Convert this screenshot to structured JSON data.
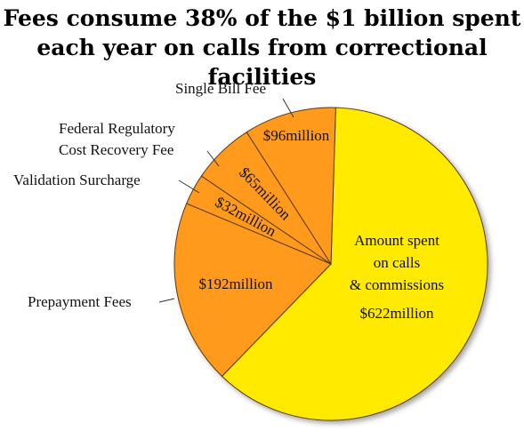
{
  "title_line1": "Fees consume 38% of the $1 billion spent",
  "title_line2": "each year on calls from correctional facilities",
  "chart_data": {
    "type": "pie",
    "title": "Fees consume 38% of the $1 billion spent each year on calls from correctional facilities",
    "unit": "million",
    "slices": [
      {
        "name": "Amount spent on calls & commissions",
        "value": 622,
        "label": "$622million",
        "color": "#FFEA00"
      },
      {
        "name": "Prepayment Fees",
        "value": 192,
        "label": "$192million",
        "color": "#FF9A1F"
      },
      {
        "name": "Validation Surcharge",
        "value": 32,
        "label": "$32million",
        "color": "#FF9A1F"
      },
      {
        "name": "Federal Regulatory Cost Recovery Fee",
        "value": 65,
        "label": "$65million",
        "color": "#FF9A1F"
      },
      {
        "name": "Single Bill Fee",
        "value": 96,
        "label": "$96million",
        "color": "#FF9A1F"
      }
    ],
    "external_labels": {
      "single_bill": "Single Bill Fee",
      "federal_line1": "Federal Regulatory",
      "federal_line2": "Cost Recovery Fee",
      "validation": "Validation Surcharge",
      "prepayment": "Prepayment Fees"
    },
    "main_slice_text": [
      "Amount spent",
      "on calls",
      "& commissions"
    ]
  }
}
